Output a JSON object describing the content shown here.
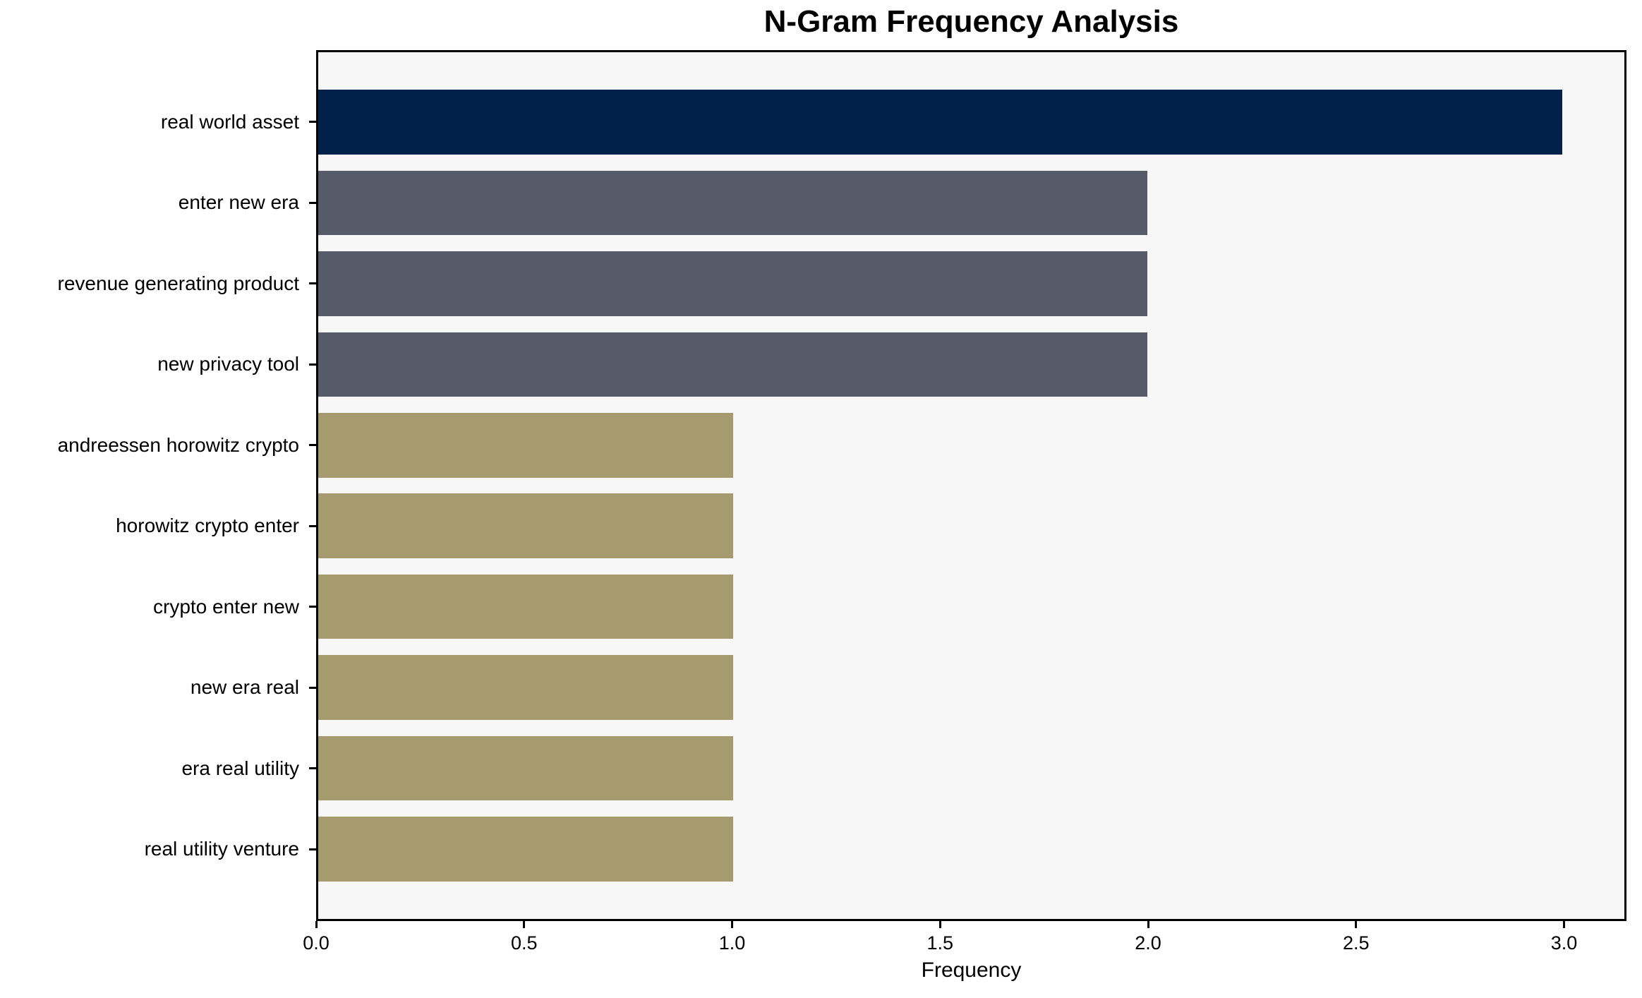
{
  "chart_data": {
    "type": "bar",
    "orientation": "horizontal",
    "title": "N-Gram Frequency Analysis",
    "xlabel": "Frequency",
    "ylabel": "",
    "categories": [
      "real world asset",
      "enter new era",
      "revenue generating product",
      "new privacy tool",
      "andreessen horowitz crypto",
      "horowitz crypto enter",
      "crypto enter new",
      "new era real",
      "era real utility",
      "real utility venture"
    ],
    "values": [
      3,
      2,
      2,
      2,
      1,
      1,
      1,
      1,
      1,
      1
    ],
    "bar_colors": [
      "#02214A",
      "#565B6A",
      "#565B6A",
      "#565B6A",
      "#A59B6E",
      "#A59B6E",
      "#A59B6E",
      "#A59B6E",
      "#A59B6E",
      "#A59B6E"
    ],
    "xlim": [
      0,
      3.15
    ],
    "xticks": [
      0,
      0.5,
      1,
      1.5,
      2,
      2.5,
      3
    ],
    "xtick_labels": [
      "0.0",
      "0.5",
      "1.0",
      "1.5",
      "2.0",
      "2.5",
      "3.0"
    ],
    "grid": false,
    "legend": null,
    "colors": {
      "plot_background": "#F7F7F8",
      "figure_background": "#FFFFFF",
      "spine": "#000000",
      "text": "#000000"
    }
  }
}
